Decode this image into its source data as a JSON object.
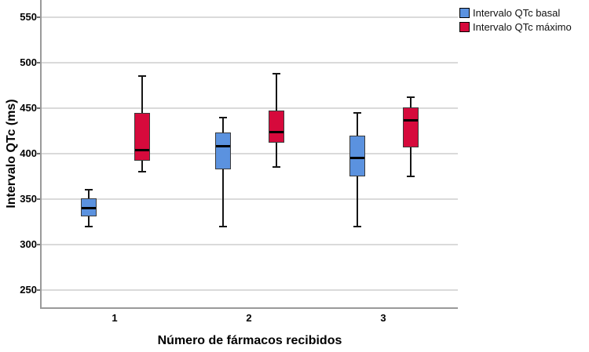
{
  "legend": {
    "items": [
      {
        "label": "Intervalo QTc basal",
        "color": "#5B92DF"
      },
      {
        "label": "Intervalo QTc máximo",
        "color": "#D60A3C"
      }
    ]
  },
  "chart_data": {
    "type": "boxplot",
    "title": "",
    "xlabel": "Número de fármacos recibidos",
    "ylabel": "Intervalo QTc (ms)",
    "categories": [
      "1",
      "2",
      "3"
    ],
    "yticks": [
      550,
      500,
      450,
      400,
      350,
      300,
      250
    ],
    "ylim": [
      231,
      569
    ],
    "grid": true,
    "legend_position": "top-right",
    "colors": {
      "gridline": "#dadada",
      "axis": "#9a9a9a",
      "whisker": "#161616",
      "box_border": "#3a3a3a",
      "median": "#000000"
    },
    "series": [
      {
        "name": "Intervalo QTc basal",
        "color": "#5B92DF",
        "boxes": [
          {
            "category": "1",
            "whisker_low": 320,
            "q1": 331,
            "median": 340,
            "q3": 351,
            "whisker_high": 360
          },
          {
            "category": "2",
            "whisker_low": 320,
            "q1": 383,
            "median": 408,
            "q3": 423,
            "whisker_high": 440
          },
          {
            "category": "3",
            "whisker_low": 320,
            "q1": 375,
            "median": 395,
            "q3": 420,
            "whisker_high": 445
          }
        ]
      },
      {
        "name": "Intervalo QTc máximo",
        "color": "#D60A3C",
        "boxes": [
          {
            "category": "1",
            "whisker_low": 380,
            "q1": 392,
            "median": 404,
            "q3": 445,
            "whisker_high": 485
          },
          {
            "category": "2",
            "whisker_low": 385,
            "q1": 412,
            "median": 424,
            "q3": 447,
            "whisker_high": 488
          },
          {
            "category": "3",
            "whisker_low": 375,
            "q1": 407,
            "median": 437,
            "q3": 451,
            "whisker_high": 462
          }
        ]
      }
    ]
  }
}
